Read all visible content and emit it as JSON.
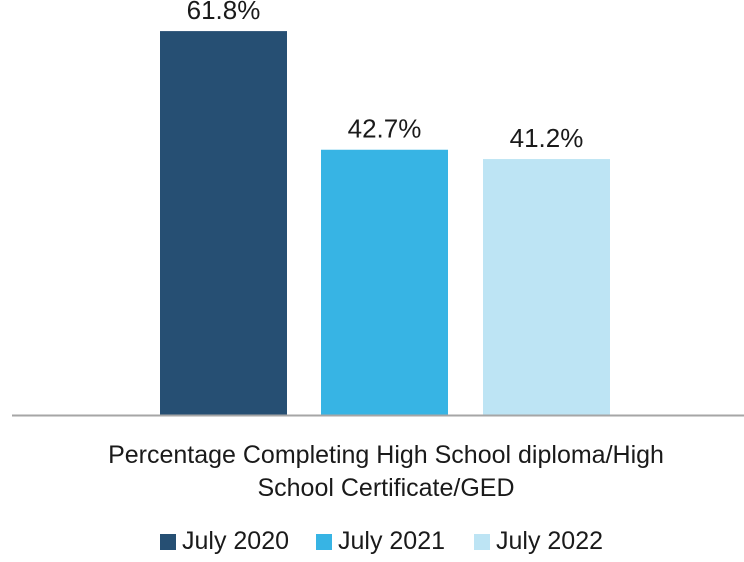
{
  "chart_data": {
    "type": "bar",
    "categories": [
      "Percentage Completing High School diploma/High School Certificate/GED"
    ],
    "category_label_lines": [
      "Percentage Completing High School diploma/High",
      "School Certificate/GED"
    ],
    "series": [
      {
        "name": "July 2020",
        "values": [
          61.8
        ],
        "label": "61.8%",
        "color": "#264f73"
      },
      {
        "name": "July 2021",
        "values": [
          42.7
        ],
        "label": "42.7%",
        "color": "#37b4e4"
      },
      {
        "name": "July 2022",
        "values": [
          41.2
        ],
        "label": "41.2%",
        "color": "#bde4f4"
      }
    ],
    "ylim": [
      0,
      66
    ],
    "grid": false,
    "legend": "bottom-center",
    "axis_color": "#a6a6a6"
  }
}
